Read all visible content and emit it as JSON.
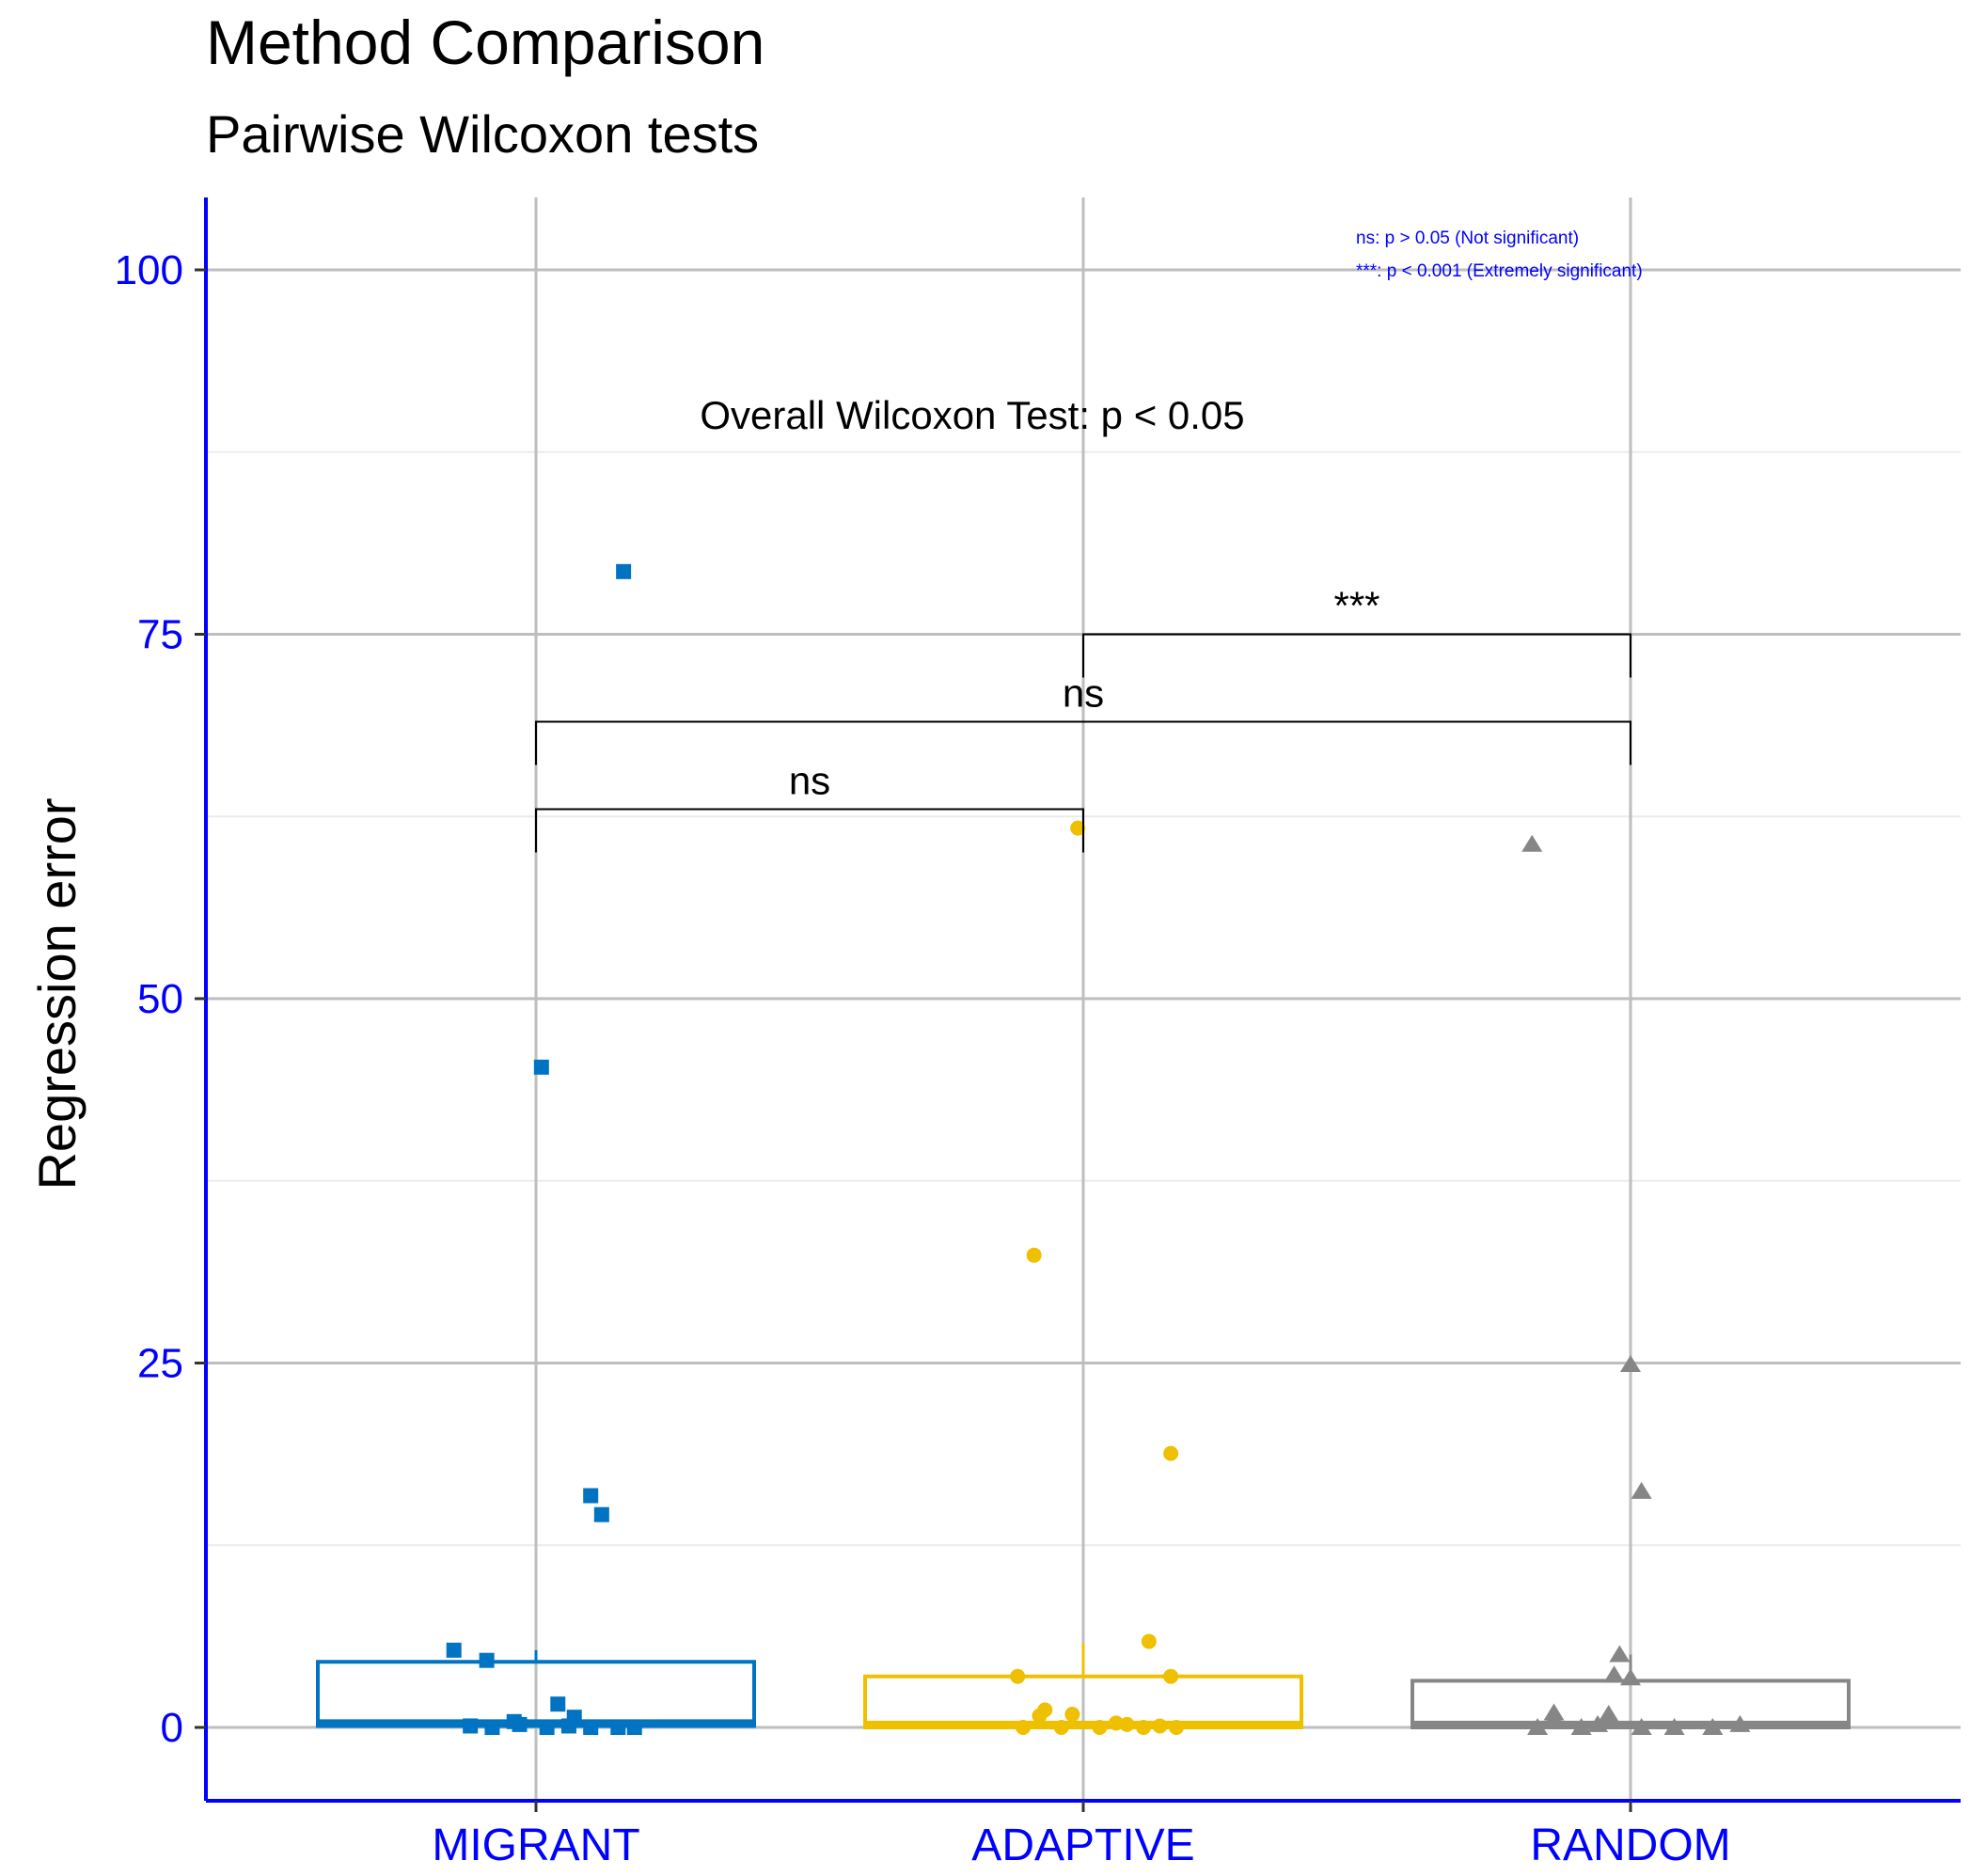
{
  "chart_data": {
    "type": "box+jitter",
    "title": "Method Comparison",
    "subtitle": "Pairwise Wilcoxon tests",
    "xlabel": "",
    "ylabel": "Regression error",
    "ylim": [
      -5,
      105
    ],
    "yticks": [
      0,
      25,
      50,
      75,
      100
    ],
    "ytick_labels": [
      "0",
      "25",
      "50",
      "75",
      "100"
    ],
    "grid": true,
    "categories": [
      "MIGRANT",
      "ADAPTIVE",
      "RANDOM"
    ],
    "series": [
      {
        "name": "MIGRANT",
        "color": "#0073C2",
        "marker": "square",
        "box": {
          "q1": 0.1,
          "median": 0.3,
          "q3": 4.5,
          "whisker_low": 0,
          "whisker_high": 5.3
        },
        "points": [
          {
            "x": 0.85,
            "y": 5.3
          },
          {
            "x": 0.91,
            "y": 4.6
          },
          {
            "x": 1.01,
            "y": 45.3
          },
          {
            "x": 1.16,
            "y": 79.3
          },
          {
            "x": 1.1,
            "y": 15.9
          },
          {
            "x": 1.12,
            "y": 14.6
          },
          {
            "x": 1.04,
            "y": 1.6
          },
          {
            "x": 1.07,
            "y": 0.7
          },
          {
            "x": 0.96,
            "y": 0.4
          },
          {
            "x": 0.88,
            "y": 0.1
          },
          {
            "x": 0.92,
            "y": 0.0
          },
          {
            "x": 0.97,
            "y": 0.2
          },
          {
            "x": 1.02,
            "y": 0.0
          },
          {
            "x": 1.06,
            "y": 0.1
          },
          {
            "x": 1.1,
            "y": 0.0
          },
          {
            "x": 1.15,
            "y": 0.0
          },
          {
            "x": 1.18,
            "y": 0.0
          }
        ]
      },
      {
        "name": "ADAPTIVE",
        "color": "#EFC000",
        "marker": "circle",
        "box": {
          "q1": 0.0,
          "median": 0.2,
          "q3": 3.5,
          "whisker_low": 0,
          "whisker_high": 5.8
        },
        "points": [
          {
            "x": 1.91,
            "y": 32.4
          },
          {
            "x": 1.99,
            "y": 61.7
          },
          {
            "x": 2.16,
            "y": 18.8
          },
          {
            "x": 2.12,
            "y": 5.9
          },
          {
            "x": 1.88,
            "y": 3.5
          },
          {
            "x": 2.16,
            "y": 3.5
          },
          {
            "x": 1.93,
            "y": 1.2
          },
          {
            "x": 1.92,
            "y": 0.8
          },
          {
            "x": 1.98,
            "y": 0.9
          },
          {
            "x": 1.89,
            "y": 0.0
          },
          {
            "x": 1.96,
            "y": 0.0
          },
          {
            "x": 2.03,
            "y": 0.0
          },
          {
            "x": 2.06,
            "y": 0.3
          },
          {
            "x": 2.08,
            "y": 0.2
          },
          {
            "x": 2.11,
            "y": 0.0
          },
          {
            "x": 2.14,
            "y": 0.1
          },
          {
            "x": 2.17,
            "y": 0.0
          }
        ]
      },
      {
        "name": "RANDOM",
        "color": "#868686",
        "marker": "triangle",
        "box": {
          "q1": 0.0,
          "median": 0.2,
          "q3": 3.2,
          "whisker_low": 0,
          "whisker_high": 5.0
        },
        "points": [
          {
            "x": 2.82,
            "y": 60.6
          },
          {
            "x": 3.0,
            "y": 24.9
          },
          {
            "x": 3.02,
            "y": 16.2
          },
          {
            "x": 2.98,
            "y": 5.0
          },
          {
            "x": 2.97,
            "y": 3.6
          },
          {
            "x": 3.0,
            "y": 3.4
          },
          {
            "x": 2.86,
            "y": 1.0
          },
          {
            "x": 2.86,
            "y": 0.6
          },
          {
            "x": 2.96,
            "y": 0.9
          },
          {
            "x": 2.83,
            "y": 0.0
          },
          {
            "x": 2.91,
            "y": 0.0
          },
          {
            "x": 2.94,
            "y": 0.2
          },
          {
            "x": 3.02,
            "y": 0.0
          },
          {
            "x": 3.08,
            "y": 0.0
          },
          {
            "x": 3.15,
            "y": 0.0
          },
          {
            "x": 3.2,
            "y": 0.2
          }
        ]
      }
    ],
    "brackets": [
      {
        "from": 1,
        "to": 2,
        "y": 63,
        "label": "ns"
      },
      {
        "from": 1,
        "to": 3,
        "y": 69,
        "label": "ns"
      },
      {
        "from": 2,
        "to": 3,
        "y": 75,
        "label": "***"
      }
    ],
    "annotations": {
      "overall_test": "Overall Wilcoxon Test: p < 0.05",
      "legend_lines": [
        "ns: p > 0.05 (Not significant)",
        "***: p < 0.001 (Extremely significant)"
      ]
    },
    "axis_color": "#0000FF"
  }
}
